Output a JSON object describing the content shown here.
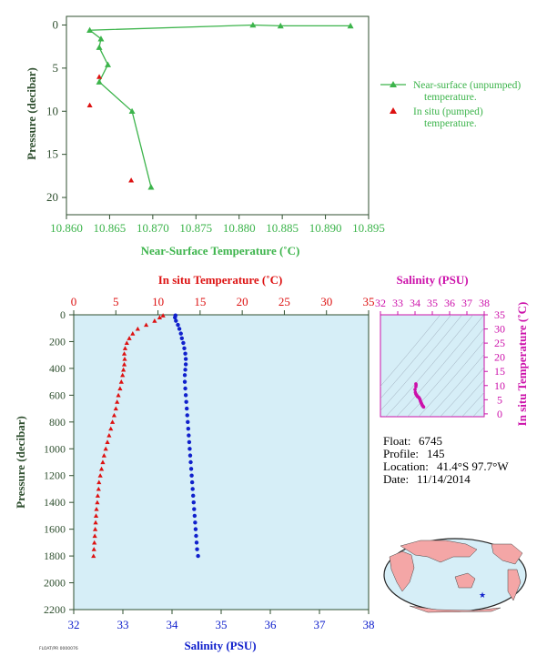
{
  "colors": {
    "axis_dark": "#2f4f2f",
    "near_surface_green": "#3cb44b",
    "insitu_red": "#dd1111",
    "salinity_blue": "#1020cc",
    "magenta": "#cc11aa",
    "panel_fill": "#d6eef7",
    "ts_grid": "#9aa8b8",
    "land": "#f4a6a6",
    "ocean": "#d6eef7",
    "footer_text": "#333333"
  },
  "info": {
    "float_label": "Float:",
    "float_value": "6745",
    "profile_label": "Profile:",
    "profile_value": "145",
    "location_label": "Location:",
    "location_value": "41.4°S  97.7°W",
    "date_label": "Date:",
    "date_value": "11/14/2014"
  },
  "footer": {
    "stamp": "FLOAT/PR 0000076"
  },
  "map": {
    "marker_icon": "star-icon",
    "marker_label": "float location"
  },
  "chart_data": [
    {
      "id": "near-surface",
      "type": "scatter",
      "xlabel": "Near-Surface Temperature (˚C)",
      "ylabel": "Pressure (decibar)",
      "xlim": [
        10.86,
        10.895
      ],
      "ylim": [
        22,
        -1
      ],
      "xticks": [
        10.86,
        10.865,
        10.87,
        10.875,
        10.88,
        10.885,
        10.89,
        10.895
      ],
      "xtick_labels": [
        "10.860",
        "10.865",
        "10.870",
        "10.875",
        "10.880",
        "10.885",
        "10.890",
        "10.895"
      ],
      "yticks": [
        0,
        5,
        10,
        15,
        20
      ],
      "ytick_labels": [
        "0",
        "5",
        "10",
        "15",
        "20"
      ],
      "legend_position": "right",
      "series": [
        {
          "name": "Near-surface (unpumped) temperature.",
          "legend_lines": [
            "Near-surface (unpumped)",
            "temperature."
          ],
          "style": "line-triangle",
          "color": "#3cb44b",
          "points": [
            [
              10.8929,
              0.1
            ],
            [
              10.8848,
              0.1
            ],
            [
              10.8816,
              0.0
            ],
            [
              10.8627,
              0.6
            ],
            [
              10.864,
              1.6
            ],
            [
              10.8638,
              2.6
            ],
            [
              10.8648,
              4.6
            ],
            [
              10.8638,
              6.6
            ],
            [
              10.8676,
              10.0
            ],
            [
              10.8698,
              18.8
            ]
          ]
        },
        {
          "name": "In situ (pumped) temperature.",
          "legend_lines": [
            "In situ (pumped)",
            "temperature."
          ],
          "style": "triangle",
          "color": "#dd1111",
          "points": [
            [
              10.8638,
              6.0
            ],
            [
              10.8627,
              9.3
            ],
            [
              10.8675,
              18.0
            ]
          ]
        }
      ]
    },
    {
      "id": "profile",
      "type": "scatter",
      "xlabel": "Salinity (PSU)",
      "x2label": "In situ Temperature (˚C)",
      "ylabel": "Pressure (decibar)",
      "salinity_lim": [
        32,
        38
      ],
      "temperature_lim": [
        0,
        35
      ],
      "ylim": [
        2200,
        0
      ],
      "salinity_ticks": [
        "32",
        "33",
        "34",
        "35",
        "36",
        "37",
        "38"
      ],
      "temperature_ticks": [
        "0",
        "5",
        "10",
        "15",
        "20",
        "25",
        "30",
        "35"
      ],
      "pressure_ticks": [
        "0",
        "200",
        "400",
        "600",
        "800",
        "1000",
        "1200",
        "1400",
        "1600",
        "1800",
        "2000",
        "2200"
      ],
      "series": [
        {
          "name": "In situ Temperature",
          "color": "#dd1111",
          "marker": "triangle",
          "points": [
            [
              10.6,
              5
            ],
            [
              10.2,
              20
            ],
            [
              9.6,
              45
            ],
            [
              8.6,
              75
            ],
            [
              7.6,
              105
            ],
            [
              7.0,
              140
            ],
            [
              6.6,
              175
            ],
            [
              6.3,
              210
            ],
            [
              6.1,
              250
            ],
            [
              6.0,
              290
            ],
            [
              6.05,
              330
            ],
            [
              6.0,
              370
            ],
            [
              5.9,
              410
            ],
            [
              5.8,
              450
            ],
            [
              5.65,
              500
            ],
            [
              5.5,
              550
            ],
            [
              5.3,
              600
            ],
            [
              5.15,
              650
            ],
            [
              5.0,
              700
            ],
            [
              4.8,
              750
            ],
            [
              4.6,
              800
            ],
            [
              4.4,
              850
            ],
            [
              4.2,
              900
            ],
            [
              4.0,
              950
            ],
            [
              3.8,
              1000
            ],
            [
              3.6,
              1050
            ],
            [
              3.45,
              1100
            ],
            [
              3.3,
              1150
            ],
            [
              3.15,
              1200
            ],
            [
              3.0,
              1250
            ],
            [
              2.95,
              1300
            ],
            [
              2.85,
              1350
            ],
            [
              2.8,
              1400
            ],
            [
              2.7,
              1450
            ],
            [
              2.65,
              1500
            ],
            [
              2.6,
              1550
            ],
            [
              2.55,
              1600
            ],
            [
              2.5,
              1650
            ],
            [
              2.45,
              1700
            ],
            [
              2.4,
              1750
            ],
            [
              2.35,
              1800
            ]
          ]
        },
        {
          "name": "Salinity",
          "color": "#1020cc",
          "marker": "circle",
          "points": [
            [
              34.07,
              5
            ],
            [
              34.06,
              20
            ],
            [
              34.08,
              45
            ],
            [
              34.12,
              75
            ],
            [
              34.15,
              105
            ],
            [
              34.18,
              140
            ],
            [
              34.2,
              175
            ],
            [
              34.23,
              210
            ],
            [
              34.25,
              250
            ],
            [
              34.27,
              290
            ],
            [
              34.28,
              330
            ],
            [
              34.28,
              370
            ],
            [
              34.27,
              410
            ],
            [
              34.26,
              450
            ],
            [
              34.26,
              500
            ],
            [
              34.27,
              550
            ],
            [
              34.28,
              600
            ],
            [
              34.29,
              650
            ],
            [
              34.3,
              700
            ],
            [
              34.31,
              750
            ],
            [
              34.32,
              800
            ],
            [
              34.33,
              850
            ],
            [
              34.34,
              900
            ],
            [
              34.35,
              950
            ],
            [
              34.36,
              1000
            ],
            [
              34.37,
              1050
            ],
            [
              34.38,
              1100
            ],
            [
              34.39,
              1150
            ],
            [
              34.4,
              1200
            ],
            [
              34.41,
              1250
            ],
            [
              34.42,
              1300
            ],
            [
              34.43,
              1350
            ],
            [
              34.44,
              1400
            ],
            [
              34.45,
              1450
            ],
            [
              34.46,
              1500
            ],
            [
              34.47,
              1550
            ],
            [
              34.48,
              1600
            ],
            [
              34.49,
              1650
            ],
            [
              34.5,
              1700
            ],
            [
              34.51,
              1750
            ],
            [
              34.53,
              1800
            ]
          ]
        }
      ]
    },
    {
      "id": "ts-diagram",
      "type": "scatter",
      "xlabel": "Salinity (PSU)",
      "ylabel": "In situ Temperature (˚C)",
      "xlim": [
        32,
        38
      ],
      "ylim": [
        -1,
        35
      ],
      "xticks": [
        "32",
        "33",
        "34",
        "35",
        "36",
        "37",
        "38"
      ],
      "yticks": [
        "0",
        "5",
        "10",
        "15",
        "20",
        "25",
        "30",
        "35"
      ],
      "color": "#cc11aa",
      "points": [
        [
          34.05,
          10.6
        ],
        [
          34.06,
          10.2
        ],
        [
          34.05,
          9.6
        ],
        [
          34.0,
          8.6
        ],
        [
          34.02,
          7.6
        ],
        [
          34.05,
          7.0
        ],
        [
          34.1,
          6.6
        ],
        [
          34.12,
          6.3
        ],
        [
          34.15,
          6.1
        ],
        [
          34.18,
          6.0
        ],
        [
          34.22,
          5.8
        ],
        [
          34.25,
          5.5
        ],
        [
          34.28,
          5.2
        ],
        [
          34.3,
          4.8
        ],
        [
          34.32,
          4.4
        ],
        [
          34.35,
          4.0
        ],
        [
          34.38,
          3.6
        ],
        [
          34.4,
          3.3
        ],
        [
          34.42,
          3.0
        ],
        [
          34.45,
          2.8
        ],
        [
          34.47,
          2.6
        ],
        [
          34.5,
          2.4
        ]
      ]
    }
  ]
}
